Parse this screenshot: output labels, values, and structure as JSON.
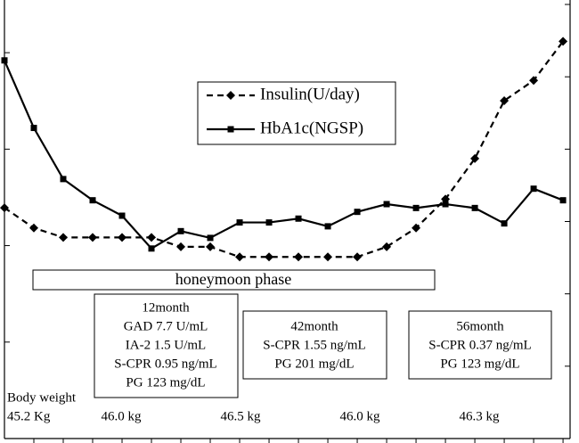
{
  "chart_data": {
    "type": "line",
    "x": [
      0,
      1,
      2,
      3,
      4,
      5,
      6,
      7,
      8,
      9,
      10,
      11,
      12,
      13,
      14,
      15,
      16,
      17,
      18,
      19
    ],
    "xlim": [
      0,
      19.24
    ],
    "xticks": [
      1,
      2,
      3,
      4,
      5,
      6,
      7,
      8,
      9,
      10,
      11,
      12,
      13,
      14,
      15,
      16,
      17,
      18,
      19
    ],
    "ylim": [
      0,
      4.5
    ],
    "yticks": [
      1,
      2,
      3,
      4
    ],
    "y2lim": [
      0,
      6
    ],
    "y2ticks": [
      0,
      1,
      2,
      3,
      4,
      5,
      6
    ],
    "series": [
      {
        "name": "Insulin(U/day)",
        "color": "#000000",
        "axis": "y2",
        "dash": true,
        "marker": "diamond",
        "values": [
          3.19,
          2.91,
          2.78,
          2.78,
          2.78,
          2.78,
          2.65,
          2.65,
          2.51,
          2.51,
          2.51,
          2.51,
          2.51,
          2.65,
          2.91,
          3.31,
          3.87,
          4.67,
          4.95,
          5.49
        ]
      },
      {
        "name": "HbA1c(NGSP)",
        "color": "#000000",
        "dash": false,
        "marker": "square",
        "values": [
          3.92,
          3.22,
          2.69,
          2.47,
          2.31,
          1.97,
          2.15,
          2.08,
          2.24,
          2.24,
          2.28,
          2.2,
          2.35,
          2.43,
          2.39,
          2.43,
          2.39,
          2.23,
          2.59,
          2.47
        ]
      }
    ],
    "annotations": {
      "phase": "honeymoon phase",
      "box1": [
        "12month",
        "GAD 7.7 U/mL",
        "IA-2 1.5 U/mL",
        "S-CPR 0.95 ng/mL",
        "PG 123 mg/dL"
      ],
      "box2": [
        "42month",
        "S-CPR 1.55 ng/mL",
        "PG 201 mg/dL"
      ],
      "box3": [
        "56month",
        "S-CPR 0.37 ng/mL",
        "PG 123 mg/dL"
      ],
      "body_weight_label": "Body weight",
      "body_weights": [
        "45.2 Kg",
        "46.0 kg",
        "46.5 kg",
        "46.0 kg",
        "46.3 kg"
      ]
    }
  }
}
